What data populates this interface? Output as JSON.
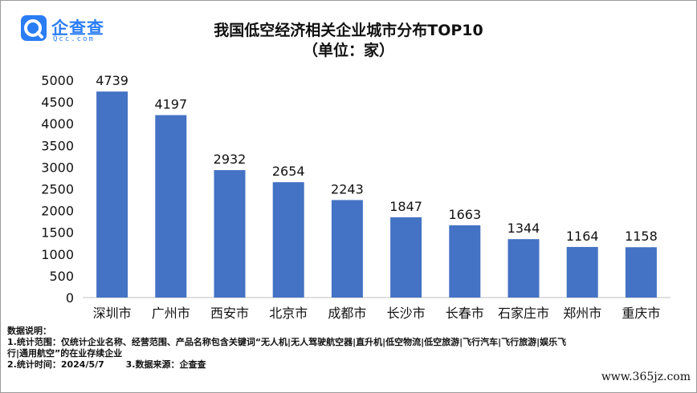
{
  "logo": {
    "name": "企查查",
    "sub": "Qcc.com"
  },
  "chart_data": {
    "type": "bar",
    "title": "我国低空经济相关企业城市分布TOP10",
    "subtitle": "（单位：家）",
    "categories": [
      "深圳市",
      "广州市",
      "西安市",
      "北京市",
      "成都市",
      "长沙市",
      "长春市",
      "石家庄市",
      "郑州市",
      "重庆市"
    ],
    "values": [
      4739,
      4197,
      2932,
      2654,
      2243,
      1847,
      1663,
      1344,
      1164,
      1158
    ],
    "yticks": [
      "0",
      "500",
      "1000",
      "1500",
      "2000",
      "2500",
      "3000",
      "3500",
      "4000",
      "4500",
      "5000"
    ],
    "ylim": [
      0,
      5000
    ],
    "grid": false,
    "bar_color": "#4472c4"
  },
  "notes": {
    "heading": "数据说明：",
    "line1": "1.统计范围：仅统计企业名称、经营范围、产品名称包含关键词“无人机|无人驾驶航空器|直升机|低空物流|低空旅游|飞行汽车|飞行旅游|娱乐飞",
    "line2": "行|通用航空”的在业存续企业",
    "line3a": "2.统计时间：2024/5/7",
    "line3b": "3.数据来源：企查查"
  },
  "watermark": "www.365jz.com"
}
